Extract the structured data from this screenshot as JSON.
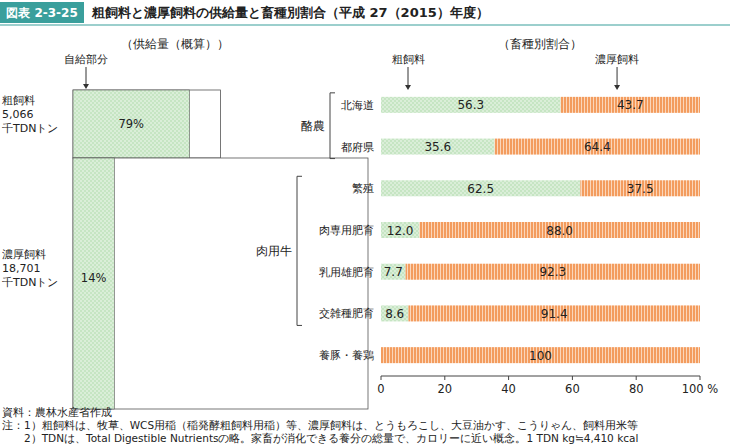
{
  "header": {
    "figure": "図表 2-3-25",
    "title": "粗飼料と濃厚飼料の供給量と畜種別割合（平成 27（2015）年度）"
  },
  "chart_data": [
    {
      "type": "mosaic",
      "subtitle": "（供給量（概算））",
      "categories": [
        "粗飼料",
        "濃厚飼料"
      ],
      "supply": [
        5066,
        18701
      ],
      "supply_labels": [
        "5,066",
        "18,701"
      ],
      "unit": "千TDNトン",
      "self_sufficiency": {
        "name": "自給部分",
        "color": "#c6e5c3",
        "values": [
          79,
          14
        ],
        "value_labels": [
          "79%",
          "14%"
        ]
      },
      "xlim": [
        0,
        100
      ],
      "data_labels": true
    },
    {
      "type": "bar",
      "orientation": "horizontal",
      "stacked": true,
      "subtitle": "（畜種別割合）",
      "categories": [
        "北海道",
        "都府県",
        "繁殖",
        "肉専用肥育",
        "乳用雄肥育",
        "交雑種肥育",
        "養豚・養鶏"
      ],
      "category_groups": [
        "酪農",
        "酪農",
        "肉用牛",
        "肉用牛",
        "肉用牛",
        "肉用牛",
        null
      ],
      "series": [
        {
          "name": "粗飼料",
          "color": "#c6e5c3",
          "values": [
            56.3,
            35.6,
            62.5,
            12.0,
            7.7,
            8.6,
            0
          ],
          "value_labels": [
            "56.3",
            "35.6",
            "62.5",
            "12.0",
            "7.7",
            "8.6",
            null
          ]
        },
        {
          "name": "濃厚飼料",
          "color": "#f39c5e",
          "values": [
            43.7,
            64.4,
            37.5,
            88.0,
            92.3,
            91.4,
            100
          ],
          "value_labels": [
            "43.7",
            "64.4",
            "37.5",
            "88.0",
            "92.3",
            "91.4",
            "100"
          ]
        }
      ],
      "xlim": [
        0,
        100
      ],
      "xticks": [
        0,
        20,
        40,
        60,
        80,
        {
          "value": 100,
          "label": "100 %"
        }
      ],
      "grid": false,
      "legend": "top",
      "data_labels": true
    }
  ],
  "footer": {
    "source": "資料：農林水産省作成",
    "note_label": "注：",
    "notes": [
      "1）粗飼料は、牧草、WCS用稲（稲発酵粗飼料用稲）等、濃厚飼料は、とうもろこし、大豆油かす、こうりゃん、飼料用米等",
      "2）TDNは、Total Digestible Nutrientsの略。家畜が消化できる養分の総量で、カロリーに近い概念。1 TDN kg≒4,410 kcal"
    ]
  }
}
